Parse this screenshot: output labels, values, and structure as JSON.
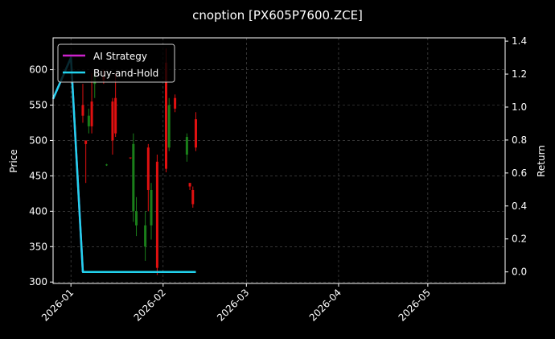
{
  "chart_data": {
    "type": "candlestick",
    "title": "cnoption [PX605P7600.ZCE]",
    "xlabel": "",
    "ylabel_left": "Price",
    "ylabel_right": "Return",
    "xlim": [
      "2025-12-26",
      "2026-05-27"
    ],
    "ylim_left": [
      298,
      645
    ],
    "ylim_right": [
      -0.07,
      1.42
    ],
    "x_ticks": [
      "2026-01",
      "2026-02",
      "2026-03",
      "2026-04",
      "2026-05"
    ],
    "y_ticks_left": [
      300,
      350,
      400,
      450,
      500,
      550,
      600
    ],
    "y_ticks_right": [
      "0.0",
      "0.2",
      "0.4",
      "0.6",
      "0.8",
      "1.0",
      "1.2",
      "1.4"
    ],
    "grid": true,
    "legend": "top-left",
    "colors": {
      "up": "#1a7f1a",
      "down": "#e01010",
      "ai_strategy": "#cc22cc",
      "buy_and_hold": "#22d3ee",
      "grid": "#555555",
      "axis": "#ffffff",
      "background": "#000000"
    },
    "candles": [
      {
        "date": "2026-01-05",
        "open": 550,
        "close": 535,
        "high": 580,
        "low": 525
      },
      {
        "date": "2026-01-06",
        "open": 500,
        "close": 495,
        "high": 500,
        "low": 440
      },
      {
        "date": "2026-01-07",
        "open": 520,
        "close": 535,
        "high": 545,
        "low": 510
      },
      {
        "date": "2026-01-08",
        "open": 555,
        "close": 520,
        "high": 595,
        "low": 510
      },
      {
        "date": "2026-01-09",
        "open": 580,
        "close": 595,
        "high": 600,
        "low": 560
      },
      {
        "date": "2026-01-12",
        "open": 590,
        "close": 585,
        "high": 600,
        "low": 580
      },
      {
        "date": "2026-01-13",
        "open": 465,
        "close": 466,
        "high": 467,
        "low": 464
      },
      {
        "date": "2026-01-15",
        "open": 555,
        "close": 500,
        "high": 560,
        "low": 480
      },
      {
        "date": "2026-01-16",
        "open": 560,
        "close": 510,
        "high": 595,
        "low": 505
      },
      {
        "date": "2026-01-21",
        "open": 476,
        "close": 475,
        "high": 476,
        "low": 474
      },
      {
        "date": "2026-01-22",
        "open": 400,
        "close": 495,
        "high": 510,
        "low": 385
      },
      {
        "date": "2026-01-23",
        "open": 380,
        "close": 400,
        "high": 420,
        "low": 365
      },
      {
        "date": "2026-01-26",
        "open": 350,
        "close": 380,
        "high": 400,
        "low": 330
      },
      {
        "date": "2026-01-27",
        "open": 490,
        "close": 430,
        "high": 495,
        "low": 400
      },
      {
        "date": "2026-01-28",
        "open": 380,
        "close": 430,
        "high": 440,
        "low": 360
      },
      {
        "date": "2026-01-30",
        "open": 470,
        "close": 320,
        "high": 480,
        "low": 310
      },
      {
        "date": "2026-02-02",
        "open": 610,
        "close": 460,
        "high": 630,
        "low": 455
      },
      {
        "date": "2026-02-03",
        "open": 490,
        "close": 550,
        "high": 560,
        "low": 485
      },
      {
        "date": "2026-02-05",
        "open": 560,
        "close": 545,
        "high": 565,
        "low": 540
      },
      {
        "date": "2026-02-09",
        "open": 480,
        "close": 505,
        "high": 510,
        "low": 470
      },
      {
        "date": "2026-02-10",
        "open": 440,
        "close": 435,
        "high": 440,
        "low": 430
      },
      {
        "date": "2026-02-11",
        "open": 430,
        "close": 410,
        "high": 435,
        "low": 405
      },
      {
        "date": "2026-02-12",
        "open": 530,
        "close": 490,
        "high": 540,
        "low": 485
      }
    ],
    "series": [
      {
        "name": "AI Strategy",
        "axis": "right",
        "x": [
          "2025-12-26",
          "2026-01-01",
          "2026-01-05",
          "2026-02-12"
        ],
        "y": [
          1.05,
          1.3,
          0.0,
          0.0
        ]
      },
      {
        "name": "Buy-and-Hold",
        "axis": "right",
        "x": [
          "2025-12-26",
          "2026-01-01",
          "2026-01-05",
          "2026-02-12"
        ],
        "y": [
          1.05,
          1.3,
          0.0,
          0.0
        ]
      }
    ]
  }
}
